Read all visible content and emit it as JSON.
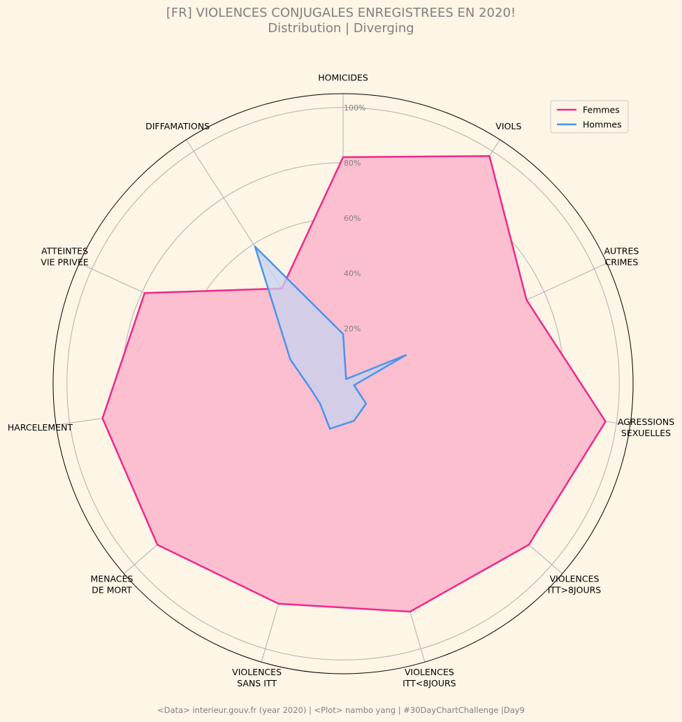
{
  "title": "[FR] VIOLENCES CONJUGALES ENREGISTREES EN 2020!",
  "subtitle": "Distribution | Diverging",
  "footer": "<Data> interieur.gouv.fr (year 2020) | <Plot> nambo yang | #30DayChartChallenge |Day9",
  "chart_data": {
    "type": "radar",
    "categories": [
      "HOMICIDES",
      "VIOLS",
      "AUTRES\nCRIMES",
      "AGRESSIONS\nSEXUELLES",
      "VIOLENCES\nITT>8JOURS",
      "VIOLENCES\nITT<8JOURS",
      "VIOLENCES\nSANS ITT",
      "MENACES\nDE MORT",
      "HARCELEMENT",
      "ATTEINTES\nVIE PRIVEE",
      "DIFFAMATIONS"
    ],
    "ticks": [
      "20%",
      "40%",
      "60%",
      "80%",
      "100%"
    ],
    "tick_values": [
      20,
      40,
      60,
      80,
      100
    ],
    "rlim": [
      0,
      105
    ],
    "grid": true,
    "legend_position": "top-right",
    "series": [
      {
        "name": "Femmes",
        "color": "#f0288c",
        "fill": "#fbbfd0",
        "values": [
          82,
          98,
          73,
          96,
          89,
          86,
          83,
          89,
          88,
          79,
          41
        ]
      },
      {
        "name": "Hommes",
        "color": "#4a94ec",
        "fill": "#c7d2f0",
        "values": [
          18,
          2,
          25,
          4,
          11,
          14,
          17,
          11,
          12,
          21,
          59
        ]
      }
    ]
  }
}
